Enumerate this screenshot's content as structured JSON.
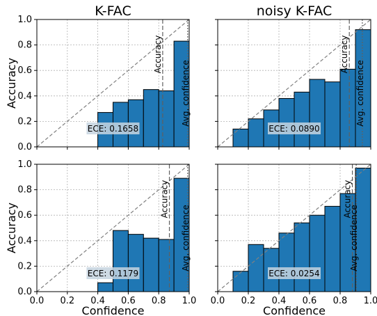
{
  "chart_data": [
    {
      "type": "bar",
      "title": "K-FAC",
      "ylabel": "Accuracy",
      "xlabel": "",
      "xlim": [
        0,
        1
      ],
      "ylim": [
        0,
        1
      ],
      "grid": true,
      "bins": [
        0.0,
        0.1,
        0.2,
        0.3,
        0.4,
        0.5,
        0.6,
        0.7,
        0.8,
        0.9
      ],
      "bin_width": 0.1,
      "values": [
        0,
        0,
        0,
        0,
        0.27,
        0.35,
        0.37,
        0.45,
        0.44,
        0.83
      ],
      "accuracy_line": 0.826,
      "avg_confidence_line": 0.99,
      "vline_labels": [
        "Accuracy",
        "Avg. confidence"
      ],
      "ece_label": "ECE: 0.1658",
      "xticks": [],
      "yticks": [
        "0.0",
        "0.2",
        "0.4",
        "0.6",
        "0.8",
        "1.0"
      ]
    },
    {
      "type": "bar",
      "title": "noisy K-FAC",
      "ylabel": "",
      "xlabel": "",
      "xlim": [
        0,
        1
      ],
      "ylim": [
        0,
        1
      ],
      "grid": true,
      "bins": [
        0.0,
        0.1,
        0.2,
        0.3,
        0.4,
        0.5,
        0.6,
        0.7,
        0.8,
        0.9
      ],
      "bin_width": 0.1,
      "values": [
        0,
        0.14,
        0.22,
        0.29,
        0.38,
        0.43,
        0.53,
        0.51,
        0.61,
        0.92
      ],
      "accuracy_line": 0.86,
      "avg_confidence_line": 0.945,
      "vline_labels": [
        "Accuracy",
        "Avg. confidence"
      ],
      "ece_label": "ECE: 0.0890",
      "xticks": [],
      "yticks": []
    },
    {
      "type": "bar",
      "title": "",
      "ylabel": "Accuracy",
      "xlabel": "Confidence",
      "xlim": [
        0,
        1
      ],
      "ylim": [
        0,
        1
      ],
      "grid": true,
      "bins": [
        0.0,
        0.1,
        0.2,
        0.3,
        0.4,
        0.5,
        0.6,
        0.7,
        0.8,
        0.9
      ],
      "bin_width": 0.1,
      "values": [
        0,
        0,
        0,
        0,
        0.07,
        0.48,
        0.45,
        0.42,
        0.41,
        0.89
      ],
      "accuracy_line": 0.87,
      "avg_confidence_line": 0.99,
      "vline_labels": [
        "Accuracy",
        "Avg. confidence"
      ],
      "ece_label": "ECE: 0.1179",
      "xticks": [
        "0.0",
        "0.2",
        "0.4",
        "0.6",
        "0.8",
        "1.0"
      ],
      "yticks": [
        "0.0",
        "0.2",
        "0.4",
        "0.6",
        "0.8",
        "1.0"
      ]
    },
    {
      "type": "bar",
      "title": "",
      "ylabel": "",
      "xlabel": "Confidence",
      "xlim": [
        0,
        1
      ],
      "ylim": [
        0,
        1
      ],
      "grid": true,
      "bins": [
        0.0,
        0.1,
        0.2,
        0.3,
        0.4,
        0.5,
        0.6,
        0.7,
        0.8,
        0.9
      ],
      "bin_width": 0.1,
      "values": [
        0,
        0.16,
        0.37,
        0.34,
        0.46,
        0.54,
        0.6,
        0.67,
        0.77,
        0.97
      ],
      "accuracy_line": 0.88,
      "avg_confidence_line": 0.905,
      "vline_labels": [
        "Accuracy",
        "Avg. confidence"
      ],
      "ece_label": "ECE: 0.0254",
      "xticks": [
        "0.0",
        "0.2",
        "0.4",
        "0.6",
        "0.8",
        "1.0"
      ],
      "yticks": []
    }
  ],
  "colors": {
    "bar_fill": "#1f77b4",
    "bar_edge": "#000000",
    "grid": "#b0b0b0",
    "diagonal": "#808080",
    "vline": "#606060",
    "ece_box": "#c5d4df"
  }
}
